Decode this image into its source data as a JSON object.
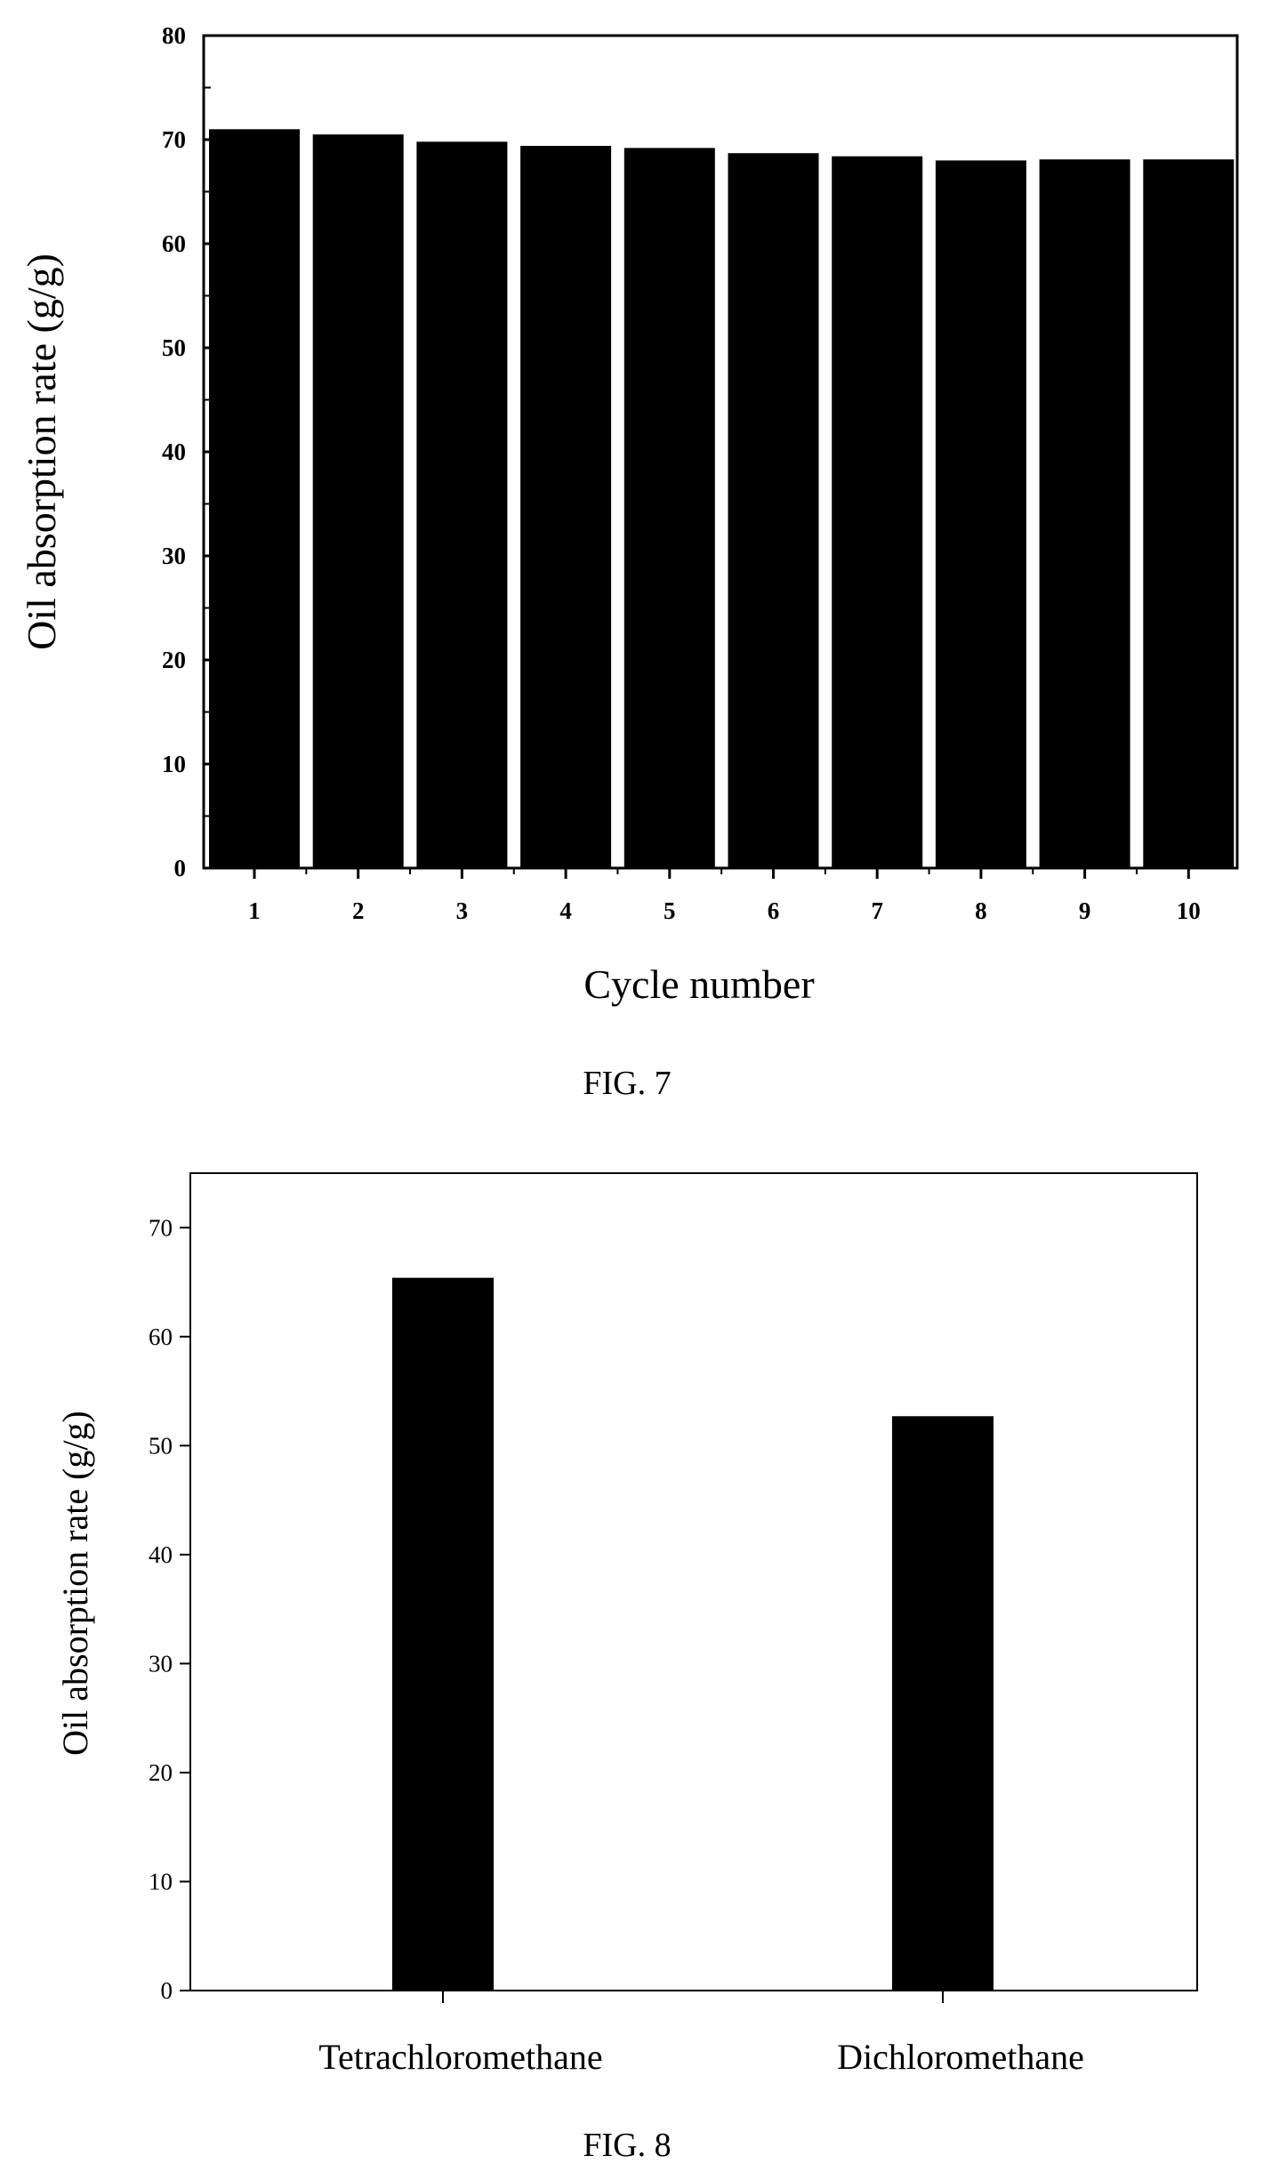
{
  "chart_data": [
    {
      "type": "bar",
      "caption": "FIG. 7",
      "xlabel": "Cycle number",
      "ylabel": "Oil absorption rate (g/g)",
      "categories": [
        "1",
        "2",
        "3",
        "4",
        "5",
        "6",
        "7",
        "8",
        "9",
        "10"
      ],
      "values": [
        71.0,
        70.5,
        69.8,
        69.4,
        69.2,
        68.7,
        68.4,
        68.0,
        68.1,
        68.1
      ],
      "ylim": [
        0,
        80
      ],
      "yticks": [
        "0",
        "10",
        "20",
        "30",
        "40",
        "50",
        "60",
        "70",
        "80"
      ],
      "bar_color": "#000000",
      "grid": false
    },
    {
      "type": "bar",
      "caption": "FIG. 8",
      "xlabel": "",
      "ylabel": "Oil absorption rate (g/g)",
      "categories": [
        "Tetrachloromethane",
        "Dichloromethane"
      ],
      "values": [
        65.4,
        52.7
      ],
      "ylim": [
        0,
        75
      ],
      "yticks": [
        "0",
        "10",
        "20",
        "30",
        "40",
        "50",
        "60",
        "70"
      ],
      "bar_color": "#000000",
      "grid": false
    }
  ]
}
